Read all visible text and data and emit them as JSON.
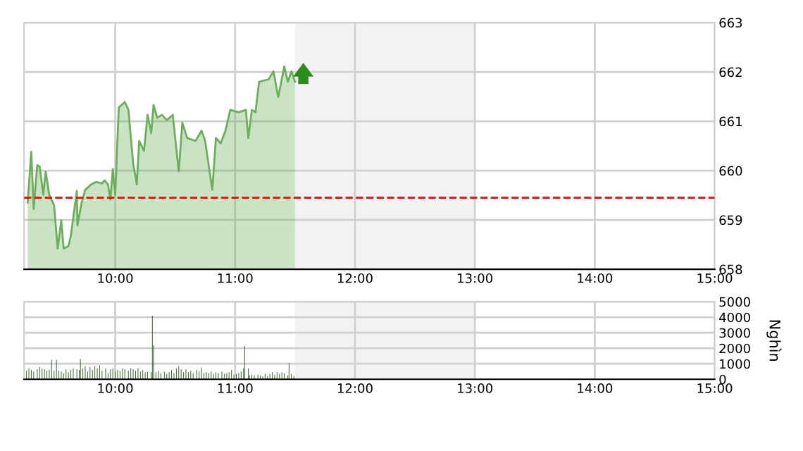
{
  "chart_data": [
    {
      "type": "area",
      "x": [
        9.27,
        9.3,
        9.32,
        9.35,
        9.37,
        9.4,
        9.42,
        9.45,
        9.49,
        9.52,
        9.55,
        9.57,
        9.61,
        9.63,
        9.68,
        9.685,
        9.72,
        9.75,
        9.8,
        9.84,
        9.89,
        9.91,
        9.94,
        9.96,
        9.98,
        10.0,
        10.03,
        10.08,
        10.11,
        10.15,
        10.18,
        10.2,
        10.24,
        10.27,
        10.3,
        10.32,
        10.35,
        10.39,
        10.43,
        10.48,
        10.53,
        10.56,
        10.6,
        10.67,
        10.72,
        10.75,
        10.81,
        10.84,
        10.88,
        10.92,
        10.96,
        11.03,
        11.09,
        11.11,
        11.14,
        11.17,
        11.2,
        11.28,
        11.32,
        11.36,
        11.41,
        11.44,
        11.47,
        11.5
      ],
      "series": [
        {
          "color": "#6aaf5a",
          "values": [
            659.35,
            660.38,
            659.22,
            660.11,
            660.08,
            659.51,
            659.98,
            659.51,
            659.3,
            658.42,
            658.99,
            658.42,
            658.47,
            658.68,
            659.59,
            658.89,
            659.35,
            659.61,
            659.72,
            659.77,
            659.74,
            659.8,
            659.72,
            659.41,
            660.03,
            659.51,
            661.28,
            661.39,
            661.23,
            660.14,
            659.72,
            660.6,
            660.4,
            661.13,
            660.76,
            661.33,
            661.07,
            661.13,
            661.02,
            661.13,
            659.98,
            660.97,
            660.66,
            660.6,
            660.81,
            660.6,
            659.61,
            660.66,
            660.55,
            660.81,
            661.23,
            661.18,
            661.23,
            660.66,
            661.23,
            661.18,
            661.8,
            661.85,
            662.01,
            661.49,
            662.11,
            661.8,
            662.01,
            661.8
          ]
        }
      ],
      "xlim": [
        9.24,
        15
      ],
      "ylim": [
        658,
        663
      ],
      "yticks": [
        658,
        659,
        660,
        661,
        662,
        663
      ],
      "xticks": [
        {
          "value": 10,
          "label": "10:00"
        },
        {
          "value": 11,
          "label": "11:00"
        },
        {
          "value": 12,
          "label": "12:00"
        },
        {
          "value": 13,
          "label": "13:00"
        },
        {
          "value": 14,
          "label": "14:00"
        },
        {
          "value": 15,
          "label": "15:00"
        }
      ],
      "ref_lines": [
        {
          "axis": "y",
          "value": 659.45,
          "color": "#ff0000",
          "line_style": "dashed"
        }
      ],
      "bands": [
        {
          "axis": "x",
          "from": 11.5,
          "to": 13,
          "color": "#f2f2f2"
        }
      ],
      "grid": true
    },
    {
      "type": "bar",
      "ylabel": "Nghìn",
      "x": [
        9.26,
        9.28,
        9.3,
        9.32,
        9.35,
        9.37,
        9.39,
        9.41,
        9.43,
        9.45,
        9.47,
        9.49,
        9.51,
        9.53,
        9.55,
        9.57,
        9.59,
        9.61,
        9.63,
        9.65,
        9.68,
        9.7,
        9.71,
        9.73,
        9.75,
        9.77,
        9.79,
        9.81,
        9.83,
        9.85,
        9.87,
        9.89,
        9.92,
        9.94,
        9.96,
        9.98,
        10.0,
        10.02,
        10.04,
        10.06,
        10.08,
        10.11,
        10.13,
        10.15,
        10.17,
        10.19,
        10.21,
        10.23,
        10.25,
        10.27,
        10.3,
        10.31,
        10.32,
        10.34,
        10.36,
        10.38,
        10.41,
        10.43,
        10.45,
        10.47,
        10.49,
        10.51,
        10.53,
        10.55,
        10.57,
        10.59,
        10.61,
        10.63,
        10.65,
        10.68,
        10.7,
        10.72,
        10.74,
        10.76,
        10.78,
        10.8,
        10.82,
        10.84,
        10.86,
        10.89,
        10.91,
        10.93,
        10.95,
        10.97,
        10.99,
        11.01,
        11.03,
        11.05,
        11.07,
        11.08,
        11.11,
        11.12,
        11.14,
        11.16,
        11.19,
        11.21,
        11.23,
        11.25,
        11.27,
        11.29,
        11.31,
        11.33,
        11.35,
        11.37,
        11.39,
        11.41,
        11.44,
        11.45,
        11.47,
        11.49
      ],
      "series": [
        {
          "color": "#3a6b2a",
          "values": [
            550,
            700,
            600,
            500,
            650,
            800,
            700,
            650,
            550,
            600,
            1250,
            550,
            1250,
            550,
            500,
            400,
            650,
            450,
            600,
            700,
            650,
            600,
            1300,
            700,
            850,
            500,
            800,
            600,
            850,
            700,
            900,
            550,
            700,
            400,
            650,
            700,
            500,
            600,
            550,
            700,
            650,
            550,
            700,
            650,
            550,
            700,
            500,
            600,
            450,
            500,
            450,
            4100,
            2200,
            450,
            550,
            400,
            500,
            350,
            450,
            600,
            400,
            700,
            850,
            650,
            450,
            650,
            450,
            550,
            400,
            600,
            500,
            750,
            400,
            450,
            400,
            500,
            350,
            450,
            400,
            500,
            350,
            400,
            450,
            600,
            300,
            350,
            400,
            500,
            700,
            2150,
            700,
            250,
            300,
            250,
            300,
            250,
            200,
            350,
            200,
            350,
            450,
            300,
            450,
            350,
            450,
            400,
            250,
            1050,
            350,
            200
          ]
        }
      ],
      "xlim": [
        9.24,
        15
      ],
      "ylim": [
        0,
        5000
      ],
      "yticks": [
        0,
        1000,
        2000,
        3000,
        4000,
        5000
      ],
      "xticks": [
        {
          "value": 10,
          "label": "10:00"
        },
        {
          "value": 11,
          "label": "11:00"
        },
        {
          "value": 12,
          "label": "12:00"
        },
        {
          "value": 13,
          "label": "13:00"
        },
        {
          "value": 14,
          "label": "14:00"
        },
        {
          "value": 15,
          "label": "15:00"
        }
      ],
      "bands": [
        {
          "axis": "x",
          "from": 11.5,
          "to": 13,
          "color": "#f2f2f2"
        }
      ],
      "grid": true
    }
  ]
}
